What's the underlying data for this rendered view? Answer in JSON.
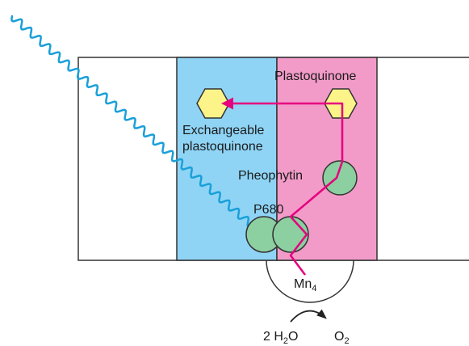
{
  "labels": {
    "plastoquinone": "Plastoquinone",
    "exchangeable_line1": "Exchangeable",
    "exchangeable_line2": "plastoquinone",
    "pheophytin": "Pheophytin",
    "p680": "P680",
    "mn": "Mn",
    "mn_sub": "4",
    "water_prefix": "2 H",
    "water_sub": "2",
    "water_suffix": "O",
    "oxygen": "O",
    "oxygen_sub": "2"
  },
  "colors": {
    "left_panel": "#8fd4f5",
    "right_panel": "#f29bc8",
    "electron_path": "#e6007e",
    "light_wave": "#1aa0d8",
    "cofactor_circle": "#8ccfa0",
    "quinone_hexagon": "#fcf489",
    "outline": "#333333"
  },
  "icons": {
    "light": "wavy-light-arrow",
    "electron_flow": "arrow-icon",
    "water_reaction": "curved-arrow-icon"
  }
}
